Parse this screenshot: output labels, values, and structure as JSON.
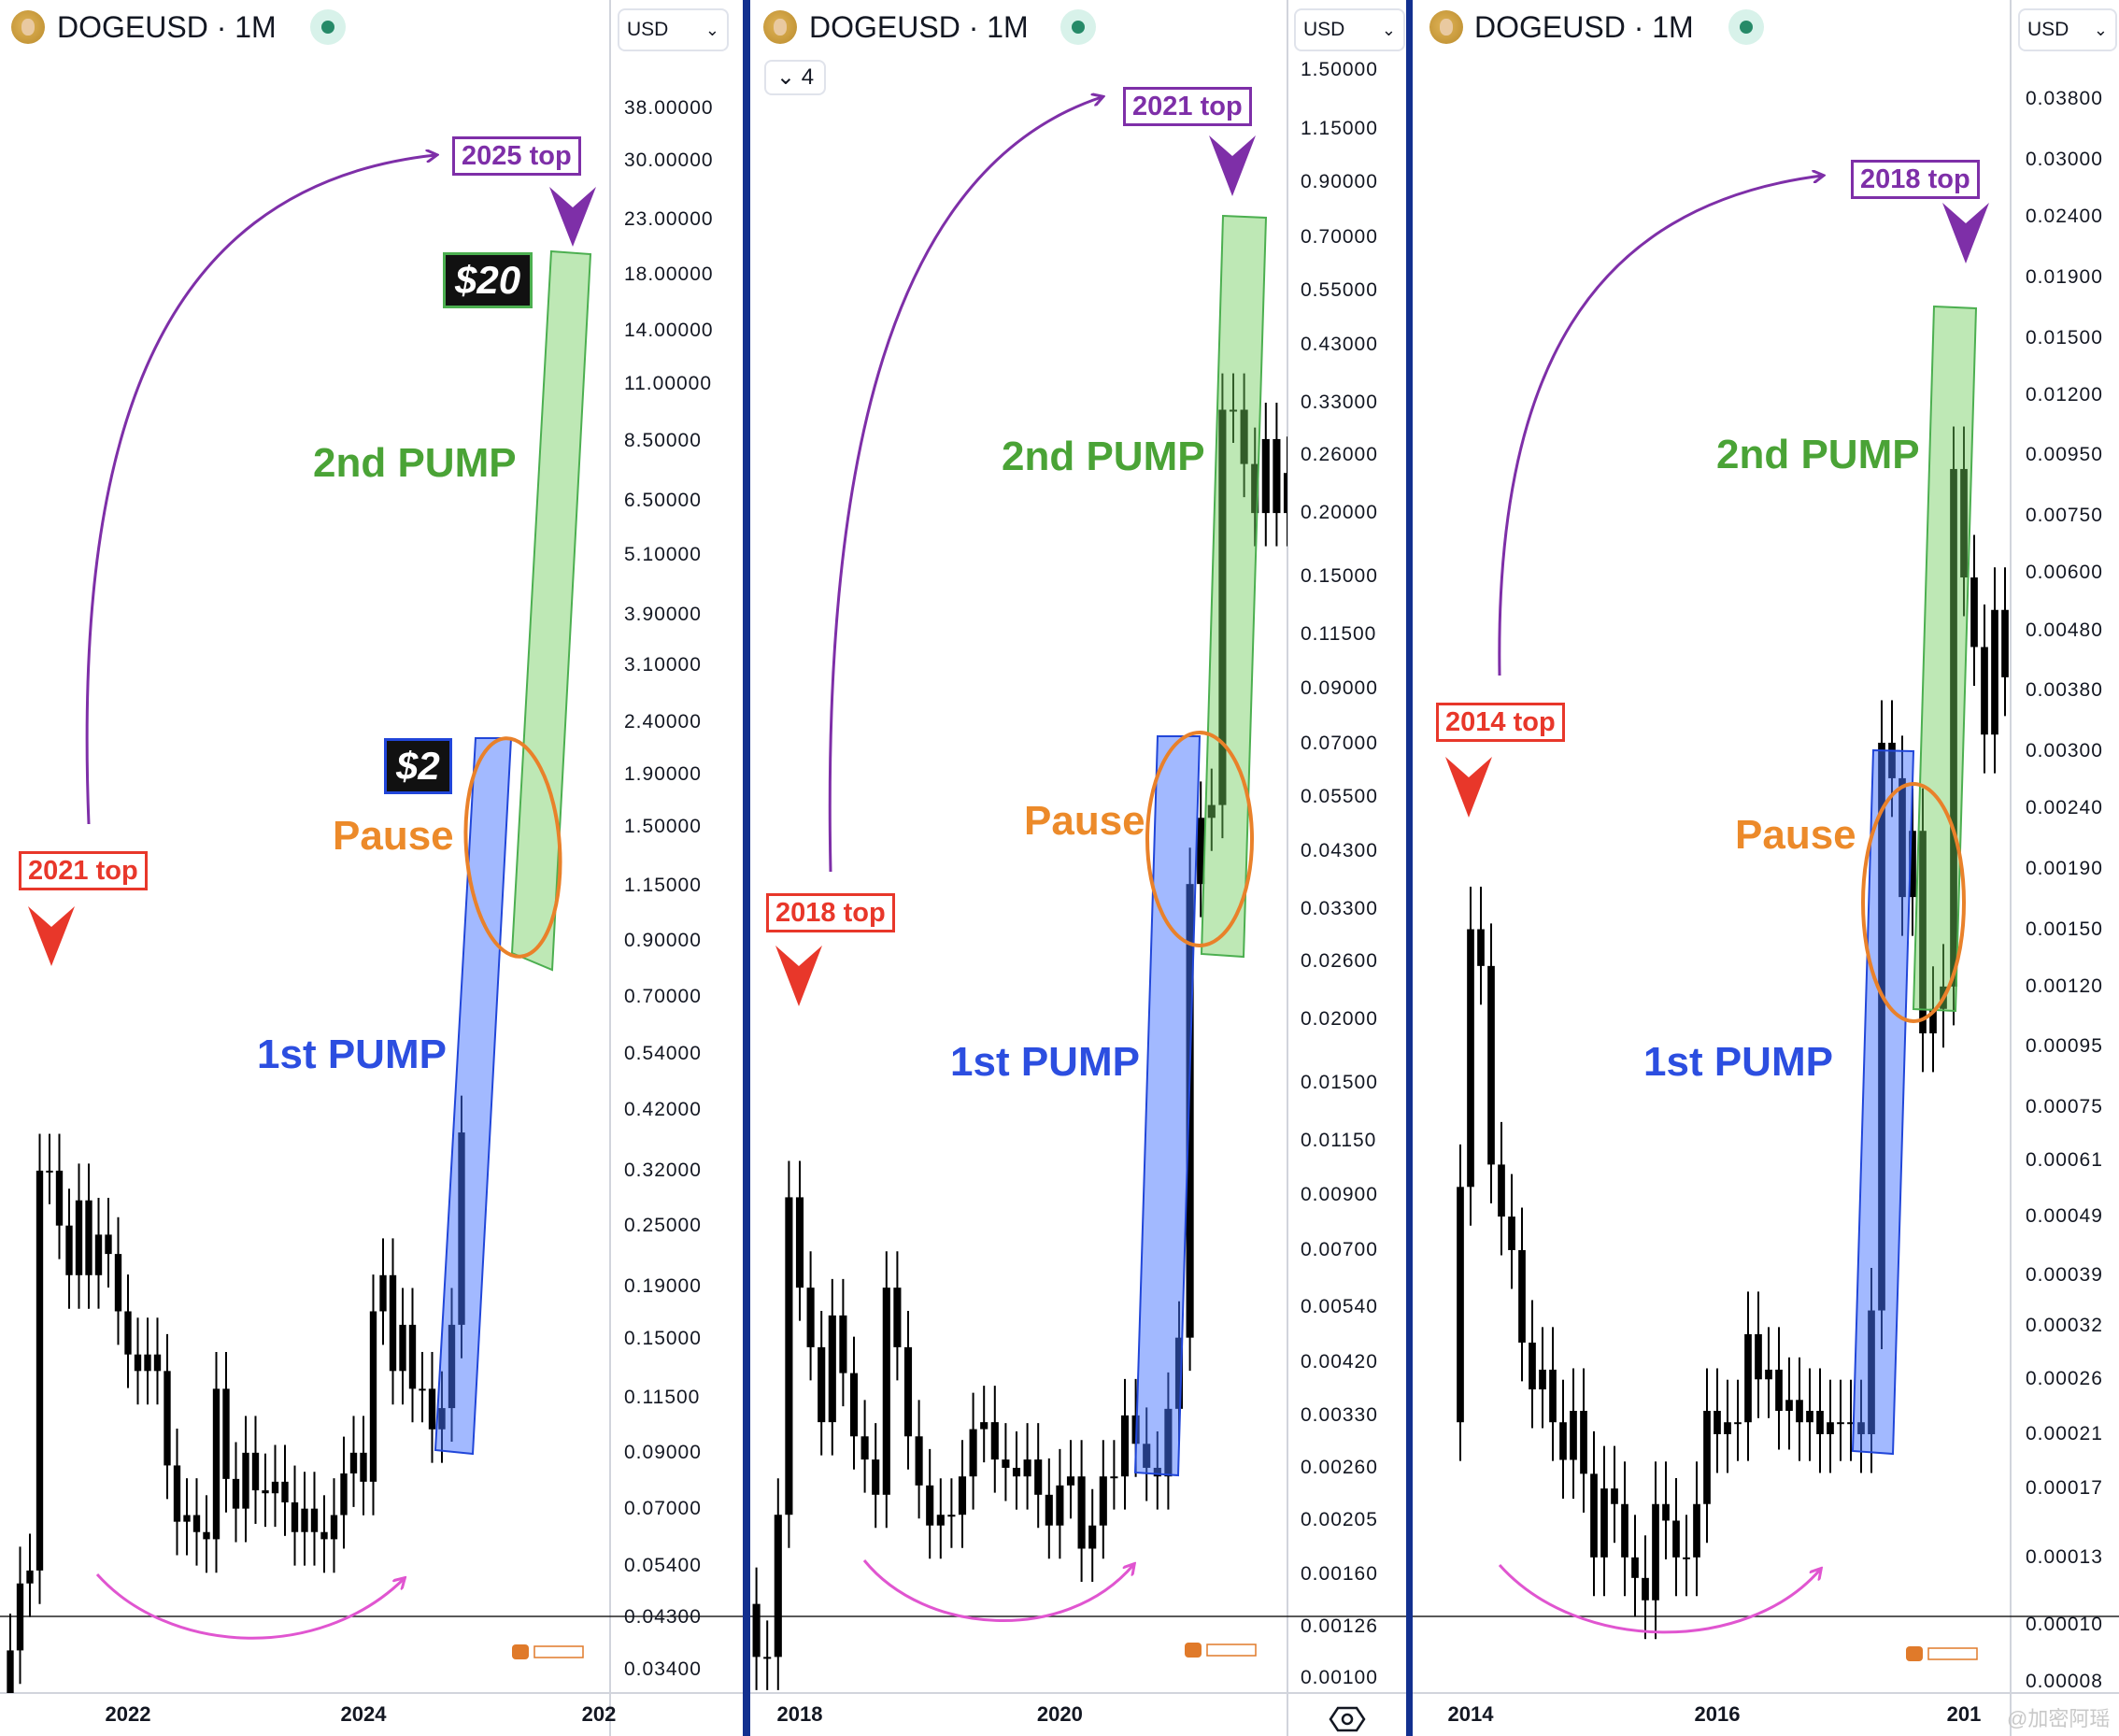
{
  "colors": {
    "candle": "#000000",
    "arrow_purple": "#7e2fa8",
    "top_red": "#e8372a",
    "pump2_green": "#4aa336",
    "pump1_blue": "#2c4ee0",
    "pause_orange": "#ec8a2a",
    "curve_pink": "#e055d0",
    "divider_blue": "#12308f",
    "live_dot": "#268a68"
  },
  "watermark": "@加密阿瑶",
  "panels": [
    {
      "symbol": "DOGEUSD · 1M",
      "currency": "USD",
      "labels": {
        "top_target": "2025 top",
        "prev_top": "2021 top",
        "pump2": "2nd PUMP",
        "pump1": "1st PUMP",
        "pause": "Pause",
        "price_high": "$20",
        "price_low": "$2"
      }
    },
    {
      "symbol": "DOGEUSD · 1M",
      "currency": "USD",
      "collapse_count": "4",
      "labels": {
        "top_target": "2021 top",
        "prev_top": "2018 top",
        "pump2": "2nd PUMP",
        "pump1": "1st PUMP",
        "pause": "Pause"
      }
    },
    {
      "symbol": "DOGEUSD · 1M",
      "currency": "USD",
      "labels": {
        "top_target": "2018 top",
        "prev_top": "2014 top",
        "pump2": "2nd PUMP",
        "pump1": "1st PUMP",
        "pause": "Pause"
      }
    }
  ],
  "chart_data": [
    {
      "type": "candlestick",
      "interval": "1M",
      "scale": "log",
      "ylim": [
        0.034,
        38
      ],
      "yticks": [
        "38.00000",
        "30.00000",
        "23.00000",
        "18.00000",
        "14.00000",
        "11.00000",
        "8.50000",
        "6.50000",
        "5.10000",
        "3.90000",
        "3.10000",
        "2.40000",
        "1.90000",
        "1.50000",
        "1.15000",
        "0.90000",
        "0.70000",
        "0.54000",
        "0.42000",
        "0.32000",
        "0.25000",
        "0.19000",
        "0.15000",
        "0.11500",
        "0.09000",
        "0.07000",
        "0.05400",
        "0.04300",
        "0.03400"
      ],
      "xticks": [
        "2022",
        "2024",
        "202"
      ],
      "start": "2021-01",
      "first_open": 0.0047,
      "closes": [
        0.037,
        0.05,
        0.053,
        0.32,
        0.32,
        0.25,
        0.2,
        0.28,
        0.2,
        0.24,
        0.22,
        0.17,
        0.14,
        0.13,
        0.14,
        0.13,
        0.085,
        0.066,
        0.068,
        0.063,
        0.061,
        0.12,
        0.08,
        0.07,
        0.09,
        0.076,
        0.075,
        0.079,
        0.072,
        0.063,
        0.07,
        0.063,
        0.061,
        0.068,
        0.082,
        0.09,
        0.079,
        0.17,
        0.2,
        0.13,
        0.16,
        0.12,
        0.12,
        0.1,
        0.11,
        0.16,
        0.38
      ]
    },
    {
      "type": "candlestick",
      "interval": "1M",
      "scale": "log",
      "ylim": [
        0.001,
        1.5
      ],
      "yticks": [
        "1.50000",
        "1.15000",
        "0.90000",
        "0.70000",
        "0.55000",
        "0.43000",
        "0.33000",
        "0.26000",
        "0.20000",
        "0.15000",
        "0.11500",
        "0.09000",
        "0.07000",
        "0.05500",
        "0.04300",
        "0.03300",
        "0.02600",
        "0.02000",
        "0.01500",
        "0.01150",
        "0.00900",
        "0.00700",
        "0.00540",
        "0.00420",
        "0.00330",
        "0.00260",
        "0.00205",
        "0.00160",
        "0.00126",
        "0.00100"
      ],
      "xticks": [
        "2018",
        "2020"
      ],
      "start": "2017-09",
      "first_open": 0.0014,
      "closes": [
        0.0011,
        0.0011,
        0.0021,
        0.0089,
        0.0059,
        0.0045,
        0.0032,
        0.0052,
        0.004,
        0.003,
        0.0027,
        0.0023,
        0.0059,
        0.0045,
        0.003,
        0.0024,
        0.002,
        0.0021,
        0.0021,
        0.0025,
        0.0031,
        0.0032,
        0.0027,
        0.0026,
        0.0025,
        0.0027,
        0.0023,
        0.002,
        0.0024,
        0.0025,
        0.0018,
        0.002,
        0.0025,
        0.0025,
        0.0033,
        0.0029,
        0.0026,
        0.0025,
        0.0034,
        0.0047,
        0.037,
        0.05,
        0.053,
        0.32,
        0.32,
        0.25,
        0.2,
        0.28,
        0.2,
        0.24
      ]
    },
    {
      "type": "candlestick",
      "interval": "1M",
      "scale": "log",
      "ylim": [
        8e-05,
        0.038
      ],
      "yticks": [
        "0.03800",
        "0.03000",
        "0.02400",
        "0.01900",
        "0.01500",
        "0.01200",
        "0.00950",
        "0.00750",
        "0.00600",
        "0.00480",
        "0.00380",
        "0.00300",
        "0.00240",
        "0.00190",
        "0.00150",
        "0.00120",
        "0.00095",
        "0.00075",
        "0.00061",
        "0.00049",
        "0.00039",
        "0.00032",
        "0.00026",
        "0.00021",
        "0.00017",
        "0.00013",
        "0.00010",
        "0.00008"
      ],
      "xticks": [
        "2014",
        "2016",
        "201"
      ],
      "start": "2013-12",
      "first_open": 0.00022,
      "closes": [
        0.00055,
        0.0015,
        0.0013,
        0.0006,
        0.00049,
        0.00043,
        0.0003,
        0.00025,
        0.00027,
        0.00022,
        0.00019,
        0.00023,
        0.00018,
        0.00013,
        0.00017,
        0.00016,
        0.00013,
        0.00012,
        0.00011,
        0.00016,
        0.00015,
        0.00013,
        0.00013,
        0.00016,
        0.00023,
        0.00021,
        0.00022,
        0.00022,
        0.00031,
        0.00026,
        0.00027,
        0.00023,
        0.00024,
        0.00022,
        0.00023,
        0.00021,
        0.00022,
        0.00022,
        0.00022,
        0.00021,
        0.00034,
        0.0031,
        0.0027,
        0.0017,
        0.0022,
        0.001,
        0.0011,
        0.0012,
        0.009,
        0.0059,
        0.0045,
        0.0032,
        0.0052,
        0.004,
        0.003
      ]
    }
  ]
}
